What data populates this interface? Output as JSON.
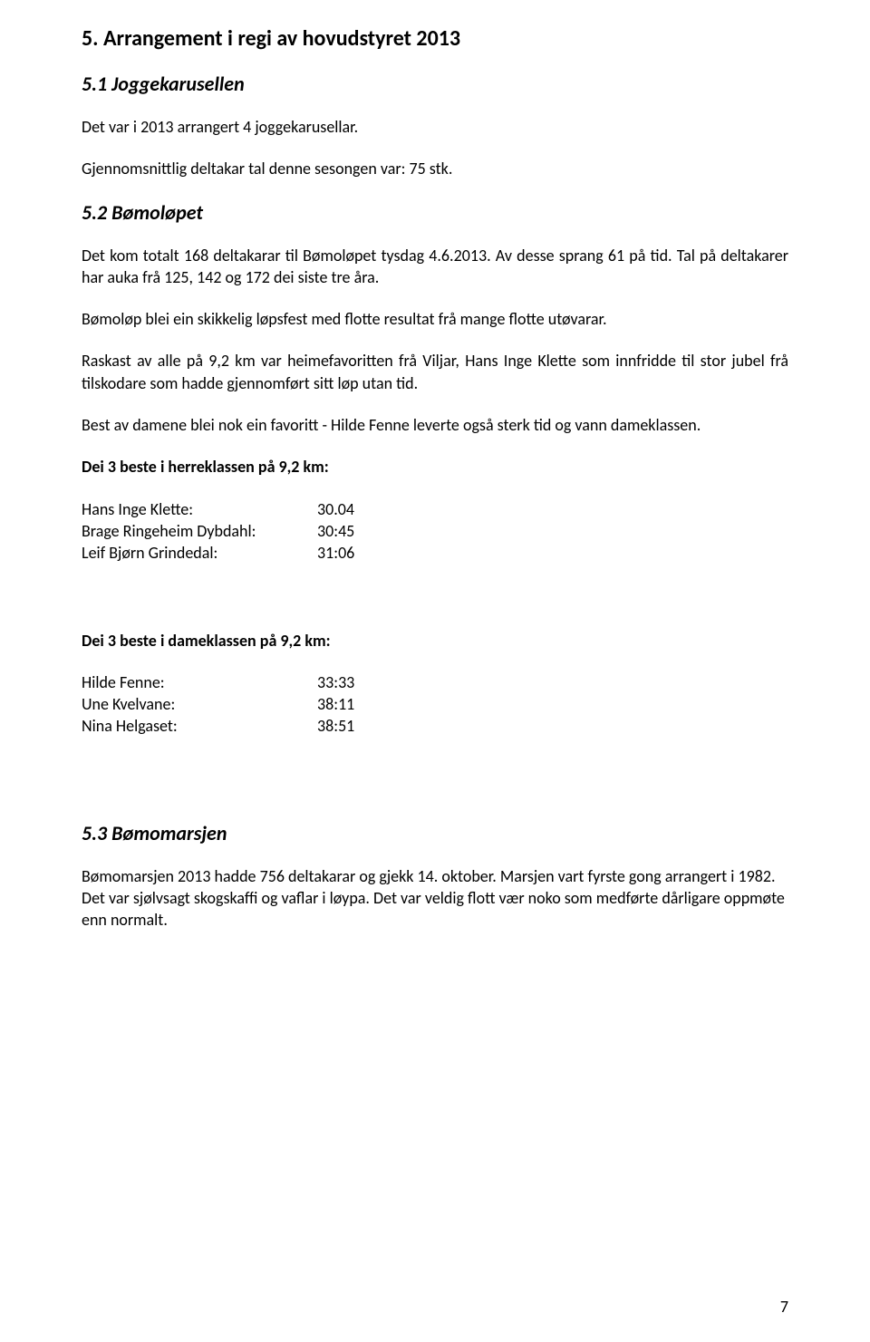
{
  "section5": {
    "heading": "5. Arrangement i regi av hovudstyret 2013",
    "s51": {
      "heading": "5.1 Joggekarusellen",
      "p1": "Det var i 2013 arrangert 4 joggekarusellar.",
      "p2": "Gjennomsnittlig deltakar tal denne sesongen var: 75 stk."
    },
    "s52": {
      "heading": "5.2 Bømoløpet",
      "p1": "Det kom totalt 168 deltakarar til Bømoløpet tysdag 4.6.2013. Av desse sprang 61 på tid. Tal på deltakarer har auka frå 125, 142 og 172 dei siste tre åra.",
      "p2": "Bømoløp blei ein skikkelig løpsfest med flotte resultat frå mange flotte utøvarar.",
      "p3": "Raskast av alle på 9,2 km var heimefavoritten frå Viljar, Hans Inge Klette som innfridde til stor jubel frå tilskodare som hadde gjennomført sitt løp utan tid.",
      "p4": "Best av damene blei nok ein favoritt - Hilde Fenne leverte også sterk tid og vann dameklassen.",
      "herre_heading": "Dei 3 beste i herreklassen på 9,2 km:",
      "herre": [
        {
          "name": "Hans Inge Klette:",
          "time": "30.04"
        },
        {
          "name": "Brage Ringeheim Dybdahl:",
          "time": "30:45"
        },
        {
          "name": "Leif Bjørn Grindedal:",
          "time": "31:06"
        }
      ],
      "dame_heading": "Dei 3 beste i dameklassen på 9,2 km:",
      "dame": [
        {
          "name": "Hilde Fenne:",
          "time": "33:33"
        },
        {
          "name": "Une Kvelvane:",
          "time": "38:11"
        },
        {
          "name": "Nina Helgaset:",
          "time": "38:51"
        }
      ]
    },
    "s53": {
      "heading": "5.3 Bømomarsjen",
      "p1": "Bømomarsjen 2013 hadde 756 deltakarar og gjekk 14. oktober. Marsjen vart fyrste gong arrangert i 1982. Det var sjølvsagt skogskaffi og vaflar i løypa. Det var veldig flott vær noko som medførte dårligare oppmøte enn normalt."
    }
  },
  "page_number": "7"
}
